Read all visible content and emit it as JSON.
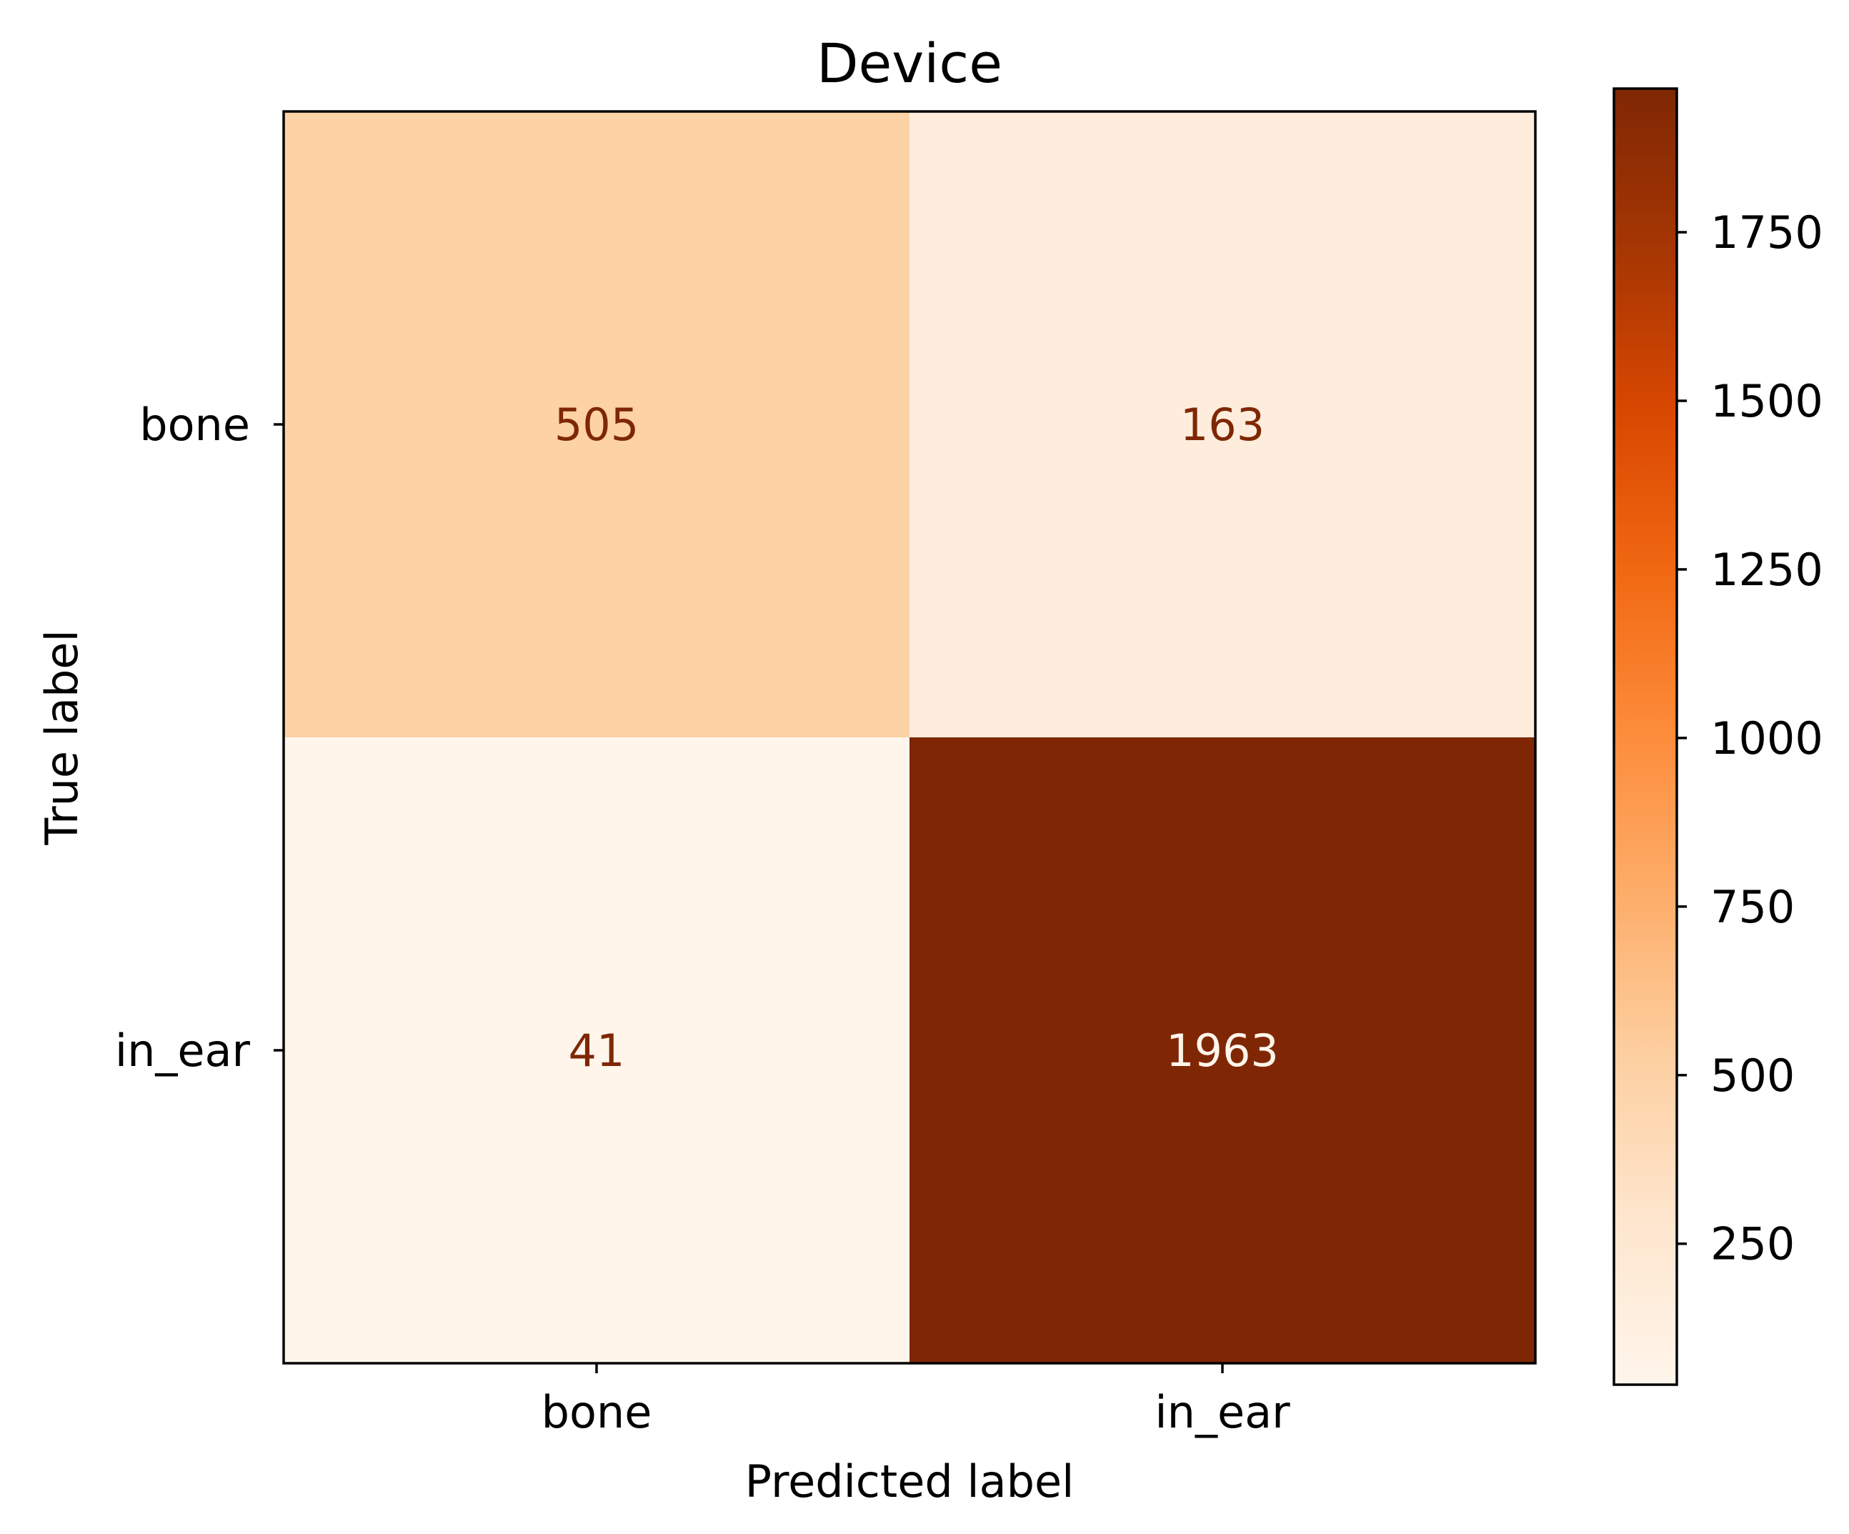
{
  "chart_data": {
    "type": "heatmap",
    "title": "Device",
    "xlabel": "Predicted label",
    "ylabel": "True label",
    "x_categories": [
      "bone",
      "in_ear"
    ],
    "y_categories": [
      "bone",
      "in_ear"
    ],
    "values": [
      [
        505,
        163
      ],
      [
        41,
        1963
      ]
    ],
    "colormap": "Oranges",
    "colorbar": {
      "range": [
        41,
        1963
      ],
      "ticks": [
        250,
        500,
        750,
        1000,
        1250,
        1500,
        1750
      ]
    },
    "text_color_light_cells": "#7f2704",
    "text_color_dark_cells": "#fff5eb"
  }
}
